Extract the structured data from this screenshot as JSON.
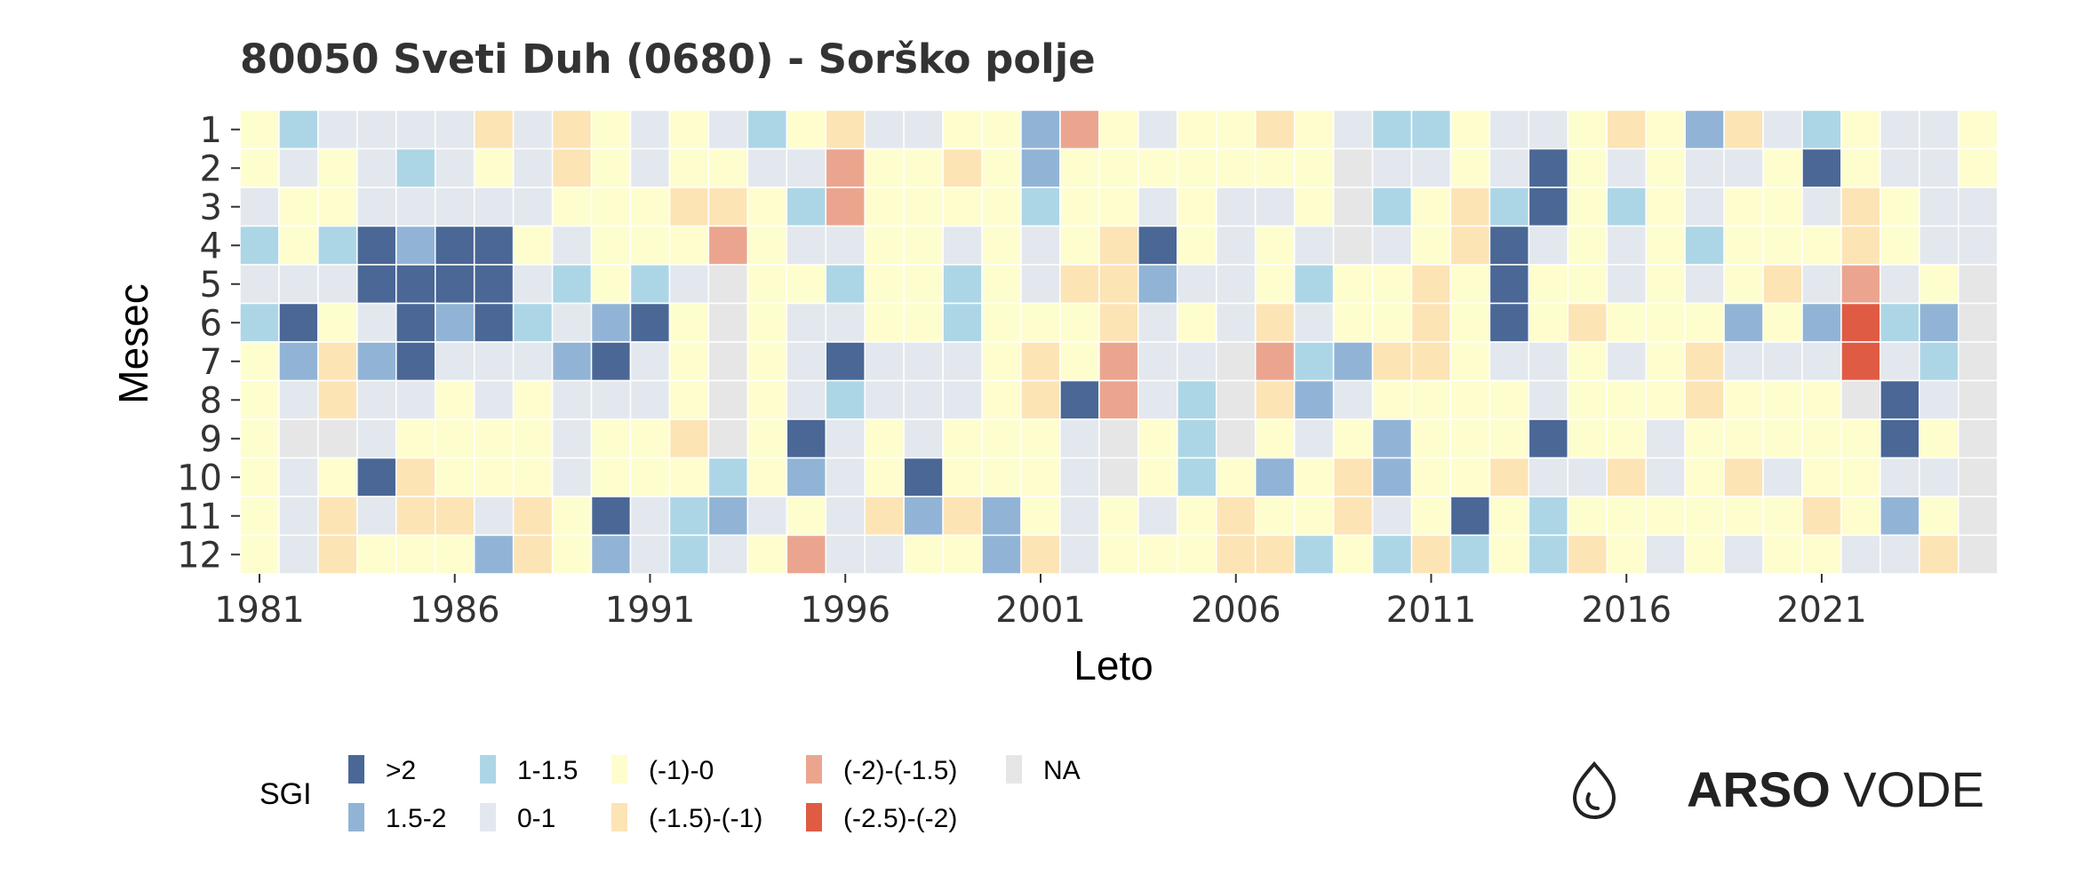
{
  "chart_data": {
    "type": "heatmap",
    "title": "80050 Sveti Duh (0680) - Sorško polje",
    "xlabel": "Leto",
    "ylabel": "Mesec",
    "x_ticks": [
      "1981",
      "1986",
      "1991",
      "1996",
      "2001",
      "2006",
      "2011",
      "2016",
      "2021"
    ],
    "y_ticks": [
      "1",
      "2",
      "3",
      "4",
      "5",
      "6",
      "7",
      "8",
      "9",
      "10",
      "11",
      "12"
    ],
    "years": [
      1981,
      1982,
      1983,
      1984,
      1985,
      1986,
      1987,
      1988,
      1989,
      1990,
      1991,
      1992,
      1993,
      1994,
      1995,
      1996,
      1997,
      1998,
      1999,
      2000,
      2001,
      2002,
      2003,
      2004,
      2005,
      2006,
      2007,
      2008,
      2009,
      2010,
      2011,
      2012,
      2013,
      2014,
      2015,
      2016,
      2017,
      2018,
      2019,
      2020,
      2021,
      2022,
      2023,
      2024,
      2025
    ],
    "months": [
      1,
      2,
      3,
      4,
      5,
      6,
      7,
      8,
      9,
      10,
      11,
      12
    ],
    "cell_value_note_categories": [
      ">2",
      "1.5-2",
      "1-1.5",
      "0-1",
      "(-1)-0",
      "(-1.5)-(-1)",
      "(-2)-(-1.5)",
      "(-2.5)-(-2)",
      "NA"
    ],
    "grid": {
      "1": [
        "(-1)-0",
        "1-1.5",
        "0-1",
        "0-1",
        "0-1",
        "0-1",
        "(-1.5)-(-1)",
        "0-1",
        "(-1.5)-(-1)",
        "(-1)-0",
        "0-1",
        "(-1)-0",
        "0-1",
        "1-1.5",
        "(-1)-0",
        "(-1.5)-(-1)",
        "0-1",
        "0-1",
        "(-1)-0",
        "(-1)-0",
        "1.5-2",
        "(-2)-(-1.5)",
        "(-1)-0",
        "0-1",
        "(-1)-0",
        "(-1)-0",
        "(-1.5)-(-1)",
        "(-1)-0",
        "0-1",
        "1-1.5",
        "1-1.5",
        "(-1)-0",
        "0-1",
        "0-1",
        "(-1)-0",
        "(-1.5)-(-1)",
        "(-1)-0",
        "1.5-2",
        "(-1.5)-(-1)",
        "0-1",
        "1-1.5",
        "(-1)-0",
        "0-1",
        "0-1",
        "(-1)-0"
      ],
      "2": [
        "(-1)-0",
        "0-1",
        "(-1)-0",
        "0-1",
        "1-1.5",
        "0-1",
        "(-1)-0",
        "0-1",
        "(-1.5)-(-1)",
        "(-1)-0",
        "0-1",
        "(-1)-0",
        "(-1)-0",
        "0-1",
        "0-1",
        "(-2)-(-1.5)",
        "(-1)-0",
        "(-1)-0",
        "(-1.5)-(-1)",
        "(-1)-0",
        "1.5-2",
        "(-1)-0",
        "(-1)-0",
        "(-1)-0",
        "(-1)-0",
        "(-1)-0",
        "(-1)-0",
        "(-1)-0",
        "NA",
        "0-1",
        "0-1",
        "(-1)-0",
        "0-1",
        ">2",
        "(-1)-0",
        "0-1",
        "(-1)-0",
        "0-1",
        "0-1",
        "(-1)-0",
        ">2",
        "(-1)-0",
        "0-1",
        "0-1",
        "(-1)-0"
      ],
      "3": [
        "0-1",
        "(-1)-0",
        "(-1)-0",
        "0-1",
        "0-1",
        "0-1",
        "0-1",
        "0-1",
        "(-1)-0",
        "(-1)-0",
        "(-1)-0",
        "(-1.5)-(-1)",
        "(-1.5)-(-1)",
        "(-1)-0",
        "1-1.5",
        "(-2)-(-1.5)",
        "(-1)-0",
        "(-1)-0",
        "(-1)-0",
        "(-1)-0",
        "1-1.5",
        "(-1)-0",
        "(-1)-0",
        "0-1",
        "(-1)-0",
        "0-1",
        "0-1",
        "(-1)-0",
        "NA",
        "1-1.5",
        "(-1)-0",
        "(-1.5)-(-1)",
        "1-1.5",
        ">2",
        "(-1)-0",
        "1-1.5",
        "(-1)-0",
        "0-1",
        "(-1)-0",
        "(-1)-0",
        "0-1",
        "(-1.5)-(-1)",
        "(-1)-0",
        "0-1",
        "0-1"
      ],
      "4": [
        "1-1.5",
        "(-1)-0",
        "1-1.5",
        ">2",
        "1.5-2",
        ">2",
        ">2",
        "(-1)-0",
        "0-1",
        "(-1)-0",
        "(-1)-0",
        "(-1)-0",
        "(-2)-(-1.5)",
        "(-1)-0",
        "0-1",
        "0-1",
        "(-1)-0",
        "(-1)-0",
        "0-1",
        "(-1)-0",
        "0-1",
        "(-1)-0",
        "(-1.5)-(-1)",
        ">2",
        "(-1)-0",
        "0-1",
        "(-1)-0",
        "0-1",
        "NA",
        "0-1",
        "(-1)-0",
        "(-1.5)-(-1)",
        ">2",
        "0-1",
        "(-1)-0",
        "0-1",
        "(-1)-0",
        "1-1.5",
        "(-1)-0",
        "(-1)-0",
        "(-1)-0",
        "(-1.5)-(-1)",
        "(-1)-0",
        "0-1",
        "0-1"
      ],
      "5": [
        "0-1",
        "0-1",
        "0-1",
        ">2",
        ">2",
        ">2",
        ">2",
        "0-1",
        "1-1.5",
        "(-1)-0",
        "1-1.5",
        "0-1",
        "NA",
        "(-1)-0",
        "(-1)-0",
        "1-1.5",
        "(-1)-0",
        "(-1)-0",
        "1-1.5",
        "(-1)-0",
        "0-1",
        "(-1.5)-(-1)",
        "(-1.5)-(-1)",
        "1.5-2",
        "0-1",
        "0-1",
        "(-1)-0",
        "1-1.5",
        "(-1)-0",
        "(-1)-0",
        "(-1.5)-(-1)",
        "(-1)-0",
        ">2",
        "(-1)-0",
        "(-1)-0",
        "0-1",
        "(-1)-0",
        "0-1",
        "(-1)-0",
        "(-1.5)-(-1)",
        "0-1",
        "(-2)-(-1.5)",
        "0-1",
        "(-1)-0",
        "NA"
      ],
      "6": [
        "1-1.5",
        ">2",
        "(-1)-0",
        "0-1",
        ">2",
        "1.5-2",
        ">2",
        "1-1.5",
        "0-1",
        "1.5-2",
        ">2",
        "(-1)-0",
        "NA",
        "(-1)-0",
        "0-1",
        "0-1",
        "(-1)-0",
        "(-1)-0",
        "1-1.5",
        "(-1)-0",
        "(-1)-0",
        "(-1)-0",
        "(-1.5)-(-1)",
        "0-1",
        "(-1)-0",
        "0-1",
        "(-1.5)-(-1)",
        "0-1",
        "(-1)-0",
        "(-1)-0",
        "(-1.5)-(-1)",
        "(-1)-0",
        ">2",
        "(-1)-0",
        "(-1.5)-(-1)",
        "(-1)-0",
        "(-1)-0",
        "(-1)-0",
        "1.5-2",
        "(-1)-0",
        "1.5-2",
        "(-2.5)-(-2)",
        "1-1.5",
        "1.5-2",
        "NA"
      ],
      "7": [
        "(-1)-0",
        "1.5-2",
        "(-1.5)-(-1)",
        "1.5-2",
        ">2",
        "0-1",
        "0-1",
        "0-1",
        "1.5-2",
        ">2",
        "0-1",
        "(-1)-0",
        "NA",
        "(-1)-0",
        "0-1",
        ">2",
        "0-1",
        "0-1",
        "0-1",
        "(-1)-0",
        "(-1.5)-(-1)",
        "(-1)-0",
        "(-2)-(-1.5)",
        "0-1",
        "0-1",
        "NA",
        "(-2)-(-1.5)",
        "1-1.5",
        "1.5-2",
        "(-1.5)-(-1)",
        "(-1.5)-(-1)",
        "(-1)-0",
        "0-1",
        "0-1",
        "(-1)-0",
        "0-1",
        "(-1)-0",
        "(-1.5)-(-1)",
        "0-1",
        "0-1",
        "0-1",
        "(-2.5)-(-2)",
        "0-1",
        "1-1.5",
        "NA"
      ],
      "8": [
        "(-1)-0",
        "0-1",
        "(-1.5)-(-1)",
        "0-1",
        "0-1",
        "(-1)-0",
        "0-1",
        "(-1)-0",
        "0-1",
        "0-1",
        "0-1",
        "(-1)-0",
        "NA",
        "(-1)-0",
        "0-1",
        "1-1.5",
        "0-1",
        "0-1",
        "0-1",
        "(-1)-0",
        "(-1.5)-(-1)",
        ">2",
        "(-2)-(-1.5)",
        "0-1",
        "1-1.5",
        "NA",
        "(-1.5)-(-1)",
        "1.5-2",
        "0-1",
        "(-1)-0",
        "(-1)-0",
        "(-1)-0",
        "(-1)-0",
        "0-1",
        "(-1)-0",
        "(-1)-0",
        "(-1)-0",
        "(-1.5)-(-1)",
        "(-1)-0",
        "(-1)-0",
        "(-1)-0",
        "NA",
        ">2",
        "0-1",
        "NA"
      ],
      "9": [
        "(-1)-0",
        "NA",
        "NA",
        "0-1",
        "(-1)-0",
        "(-1)-0",
        "(-1)-0",
        "(-1)-0",
        "0-1",
        "(-1)-0",
        "(-1)-0",
        "(-1.5)-(-1)",
        "NA",
        "(-1)-0",
        ">2",
        "0-1",
        "(-1)-0",
        "0-1",
        "(-1)-0",
        "(-1)-0",
        "(-1)-0",
        "0-1",
        "NA",
        "(-1)-0",
        "1-1.5",
        "NA",
        "(-1)-0",
        "0-1",
        "(-1)-0",
        "1.5-2",
        "(-1)-0",
        "(-1)-0",
        "(-1)-0",
        ">2",
        "(-1)-0",
        "(-1)-0",
        "0-1",
        "(-1)-0",
        "(-1)-0",
        "(-1)-0",
        "(-1)-0",
        "(-1)-0",
        ">2",
        "(-1)-0",
        "NA"
      ],
      "10": [
        "(-1)-0",
        "0-1",
        "(-1)-0",
        ">2",
        "(-1.5)-(-1)",
        "(-1)-0",
        "(-1)-0",
        "(-1)-0",
        "0-1",
        "(-1)-0",
        "(-1)-0",
        "(-1)-0",
        "1-1.5",
        "(-1)-0",
        "1.5-2",
        "0-1",
        "(-1)-0",
        ">2",
        "(-1)-0",
        "(-1)-0",
        "(-1)-0",
        "0-1",
        "NA",
        "(-1)-0",
        "1-1.5",
        "(-1)-0",
        "1.5-2",
        "(-1)-0",
        "(-1.5)-(-1)",
        "1.5-2",
        "(-1)-0",
        "(-1)-0",
        "(-1.5)-(-1)",
        "0-1",
        "0-1",
        "(-1.5)-(-1)",
        "0-1",
        "(-1)-0",
        "(-1.5)-(-1)",
        "0-1",
        "(-1)-0",
        "(-1)-0",
        "0-1",
        "0-1",
        "NA"
      ],
      "11": [
        "(-1)-0",
        "0-1",
        "(-1.5)-(-1)",
        "0-1",
        "(-1.5)-(-1)",
        "(-1.5)-(-1)",
        "0-1",
        "(-1.5)-(-1)",
        "(-1)-0",
        ">2",
        "0-1",
        "1-1.5",
        "1.5-2",
        "0-1",
        "(-1)-0",
        "0-1",
        "(-1.5)-(-1)",
        "1.5-2",
        "(-1.5)-(-1)",
        "1.5-2",
        "(-1)-0",
        "0-1",
        "(-1)-0",
        "0-1",
        "(-1)-0",
        "(-1.5)-(-1)",
        "(-1)-0",
        "(-1)-0",
        "(-1.5)-(-1)",
        "0-1",
        "(-1)-0",
        ">2",
        "(-1)-0",
        "1-1.5",
        "(-1)-0",
        "(-1)-0",
        "(-1)-0",
        "(-1)-0",
        "(-1)-0",
        "(-1)-0",
        "(-1.5)-(-1)",
        "(-1)-0",
        "1.5-2",
        "(-1)-0",
        "NA"
      ],
      "12": [
        "(-1)-0",
        "0-1",
        "(-1.5)-(-1)",
        "(-1)-0",
        "(-1)-0",
        "(-1)-0",
        "1.5-2",
        "(-1.5)-(-1)",
        "(-1)-0",
        "1.5-2",
        "0-1",
        "1-1.5",
        "0-1",
        "(-1)-0",
        "(-2)-(-1.5)",
        "0-1",
        "0-1",
        "(-1)-0",
        "(-1)-0",
        "1.5-2",
        "(-1.5)-(-1)",
        "0-1",
        "(-1)-0",
        "(-1)-0",
        "(-1)-0",
        "(-1.5)-(-1)",
        "(-1.5)-(-1)",
        "1-1.5",
        "(-1)-0",
        "1-1.5",
        "(-1.5)-(-1)",
        "1-1.5",
        "(-1)-0",
        "1-1.5",
        "(-1.5)-(-1)",
        "(-1)-0",
        "0-1",
        "(-1)-0",
        "0-1",
        "(-1)-0",
        "(-1)-0",
        "0-1",
        "0-1",
        "(-1.5)-(-1)",
        "NA"
      ]
    },
    "legend": {
      "title": "SGI",
      "placement": "bottom-left",
      "entries": [
        {
          "label": ">2",
          "color": "#4a6795"
        },
        {
          "label": "1.5-2",
          "color": "#91b4d6"
        },
        {
          "label": "1-1.5",
          "color": "#acd6e6"
        },
        {
          "label": "0-1",
          "color": "#e3e8ee"
        },
        {
          "label": "(-1)-0",
          "color": "#fefdce"
        },
        {
          "label": "(-1.5)-(-1)",
          "color": "#fde4b5"
        },
        {
          "label": "(-2)-(-1.5)",
          "color": "#eba58f"
        },
        {
          "label": "(-2.5)-(-2)",
          "color": "#e05b43"
        },
        {
          "label": "NA",
          "color": "#e6e6e6"
        }
      ]
    },
    "grid_lines": true
  },
  "branding": {
    "logo_icon": "water-drop-icon",
    "logo_bold": "ARSO",
    "logo_light": "VODE"
  }
}
